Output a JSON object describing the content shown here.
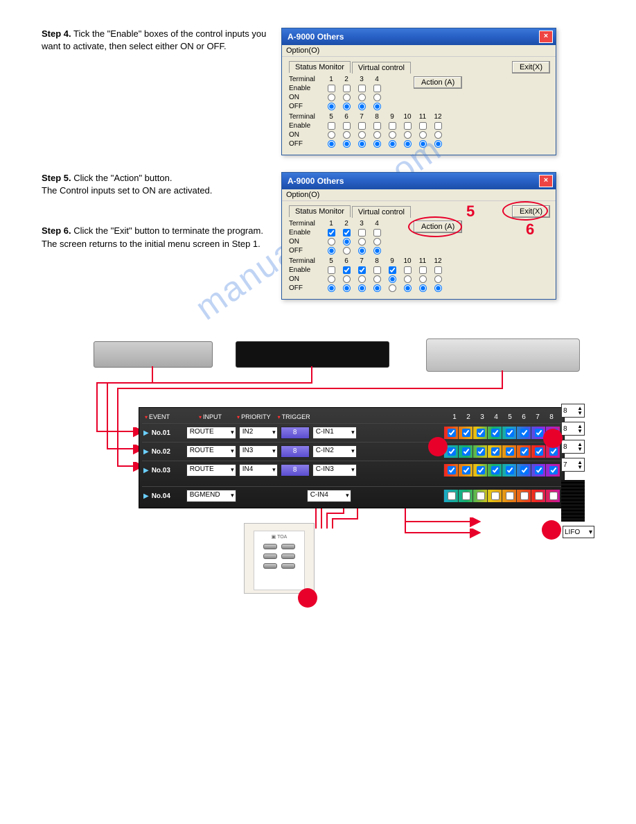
{
  "watermark": "manualshive.com",
  "steps": {
    "s4": {
      "label": "Step 4.",
      "text": "Tick the \"Enable\" boxes of the control inputs you want to activate, then select either ON or OFF."
    },
    "s5": {
      "label": "Step 5.",
      "text1": "Click the \"Action\" button.",
      "text2": "The Control inputs set to ON are activated."
    },
    "s6": {
      "label": "Step 6.",
      "text1": "Click the \"Exit\" button to terminate the program.",
      "text2": "The screen returns to the initial menu screen in Step 1."
    }
  },
  "dialog": {
    "title": "A-9000 Others",
    "menu": "Option(O)",
    "tabs": {
      "status": "Status Monitor",
      "virtual": "Virtual control"
    },
    "exitBtn": "Exit(X)",
    "actionBtn": "Action (A)",
    "terminal": "Terminal",
    "enable": "Enable",
    "on": "ON",
    "off": "OFF",
    "nums1": [
      "1",
      "2",
      "3",
      "4"
    ],
    "nums2": [
      "5",
      "6",
      "7",
      "8",
      "9",
      "10",
      "11",
      "12"
    ]
  },
  "d1_state": {
    "enable1": [
      false,
      false,
      false,
      false
    ],
    "on1": [
      false,
      false,
      false,
      false
    ],
    "off1": [
      true,
      true,
      true,
      true
    ],
    "enable2": [
      false,
      false,
      false,
      false,
      false,
      false,
      false,
      false
    ],
    "on2": [
      false,
      false,
      false,
      false,
      false,
      false,
      false,
      false
    ],
    "off2": [
      true,
      true,
      true,
      true,
      true,
      true,
      true,
      true
    ]
  },
  "d2_state": {
    "enable1": [
      true,
      true,
      false,
      false
    ],
    "on1": [
      false,
      true,
      false,
      false
    ],
    "off1": [
      true,
      false,
      true,
      true
    ],
    "enable2": [
      false,
      true,
      true,
      false,
      true,
      false,
      false,
      false
    ],
    "on2": [
      false,
      false,
      false,
      false,
      true,
      false,
      false,
      false
    ],
    "off2": [
      true,
      true,
      true,
      true,
      false,
      true,
      true,
      true
    ]
  },
  "callouts": {
    "n5": "5",
    "n6": "6"
  },
  "panel": {
    "headers": {
      "event": "EVENT",
      "input": "INPUT",
      "priority": "PRIORITY",
      "trigger": "TRIGGER"
    },
    "zoneNums": [
      "1",
      "2",
      "3",
      "4",
      "5",
      "6",
      "7",
      "8"
    ],
    "rows": [
      {
        "no": "No.01",
        "event": "ROUTE",
        "input": "IN2",
        "pri": "8",
        "trig": "C-IN1",
        "zones": [
          true,
          true,
          true,
          true,
          true,
          true,
          true,
          true
        ]
      },
      {
        "no": "No.02",
        "event": "ROUTE",
        "input": "IN3",
        "pri": "8",
        "trig": "C-IN2",
        "zones": [
          true,
          true,
          true,
          true,
          true,
          true,
          true,
          true
        ]
      },
      {
        "no": "No.03",
        "event": "ROUTE",
        "input": "IN4",
        "pri": "8",
        "trig": "C-IN3",
        "zones": [
          true,
          true,
          true,
          true,
          true,
          true,
          true,
          true
        ]
      },
      {
        "no": "No.04",
        "event": "BGMEND",
        "input": "",
        "pri": "",
        "trig": "C-IN4",
        "zones": [
          false,
          false,
          false,
          false,
          false,
          false,
          false,
          false
        ]
      }
    ]
  },
  "spinners": [
    "8",
    "8",
    "8",
    "7"
  ],
  "lifo": "LIFO",
  "colors": {
    "xp_blue": "#2860c5",
    "red": "#e8002a",
    "panel_bg": "#2a2a2a",
    "priority": "#6a5ce0"
  }
}
